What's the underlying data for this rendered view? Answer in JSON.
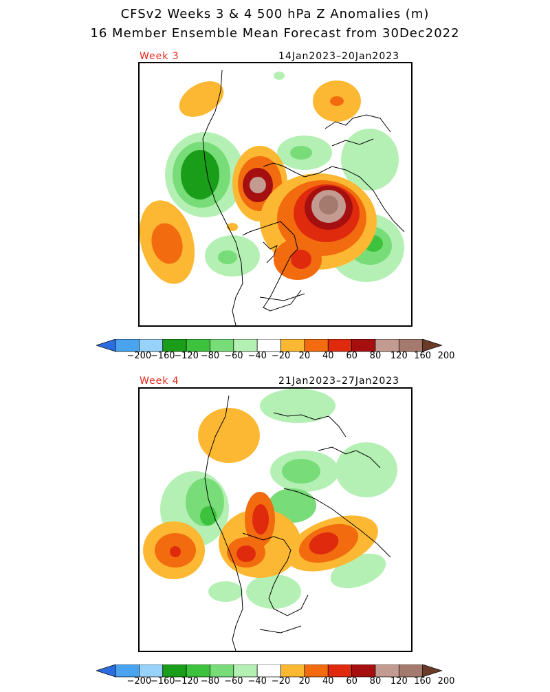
{
  "title": "CFSv2 Weeks 3 & 4 500 hPa Z Anomalies (m)",
  "subtitle": "16 Member Ensemble Mean Forecast from 30Dec2022",
  "panels": [
    {
      "week_label": "Week 3",
      "date_range": "14Jan2023–20Jan2023"
    },
    {
      "week_label": "Week 4",
      "date_range": "21Jan2023–27Jan2023"
    }
  ],
  "colorbar": {
    "levels": [
      "−200",
      "−160",
      "−120",
      "−80",
      "−60",
      "−40",
      "−20",
      "20",
      "40",
      "60",
      "80",
      "120",
      "160",
      "200"
    ],
    "colors": [
      "#2b6de0",
      "#4aa3ee",
      "#96d2fa",
      "#1a9e1a",
      "#3dc23d",
      "#78dc78",
      "#b4f0b4",
      "#ffffff",
      "#fdb833",
      "#f26b0f",
      "#df2a0e",
      "#a50f0f",
      "#c49b90",
      "#a57a6e",
      "#6b3b28"
    ]
  },
  "colors": {
    "week_label": "#e8261a",
    "border": "#000000"
  }
}
